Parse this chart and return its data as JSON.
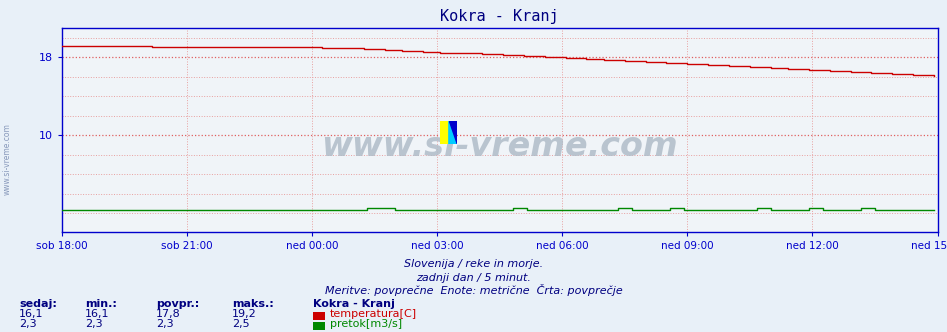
{
  "title": "Kokra - Kranj",
  "title_color": "#000080",
  "bg_color": "#e8f0f8",
  "plot_bg_color": "#f0f4f8",
  "tick_labels": [
    "sob 18:00",
    "sob 21:00",
    "ned 00:00",
    "ned 03:00",
    "ned 06:00",
    "ned 09:00",
    "ned 12:00",
    "ned 15:00"
  ],
  "ytick_vals": [
    10,
    18
  ],
  "ytick_labels": [
    "10",
    "18"
  ],
  "ymin": 0,
  "ymax": 21.0,
  "xmin": 0,
  "xmax": 252,
  "hgrid_vals": [
    2,
    4,
    6,
    8,
    10,
    12,
    14,
    16,
    18,
    20
  ],
  "hgrid_major": [
    10,
    18
  ],
  "grid_color": "#e8a0a0",
  "grid_major_color": "#e06060",
  "temp_color": "#cc0000",
  "flow_color": "#008800",
  "axis_color": "#0000cc",
  "watermark": "www.si-vreme.com",
  "subtitle1": "Slovenija / reke in morje.",
  "subtitle2": "zadnji dan / 5 minut.",
  "subtitle3": "Meritve: povprečne  Enote: metrične  Črta: povprečje",
  "subtitle_color": "#000080",
  "legend_title": "Kokra - Kranj",
  "stats_headers": [
    "sedaj:",
    "min.:",
    "povpr.:",
    "maks.:"
  ],
  "stats_color": "#000080",
  "temp_stats": [
    "16,1",
    "16,1",
    "17,8",
    "19,2"
  ],
  "flow_stats": [
    "2,3",
    "2,3",
    "2,3",
    "2,5"
  ],
  "temp_label": "temperatura[C]",
  "flow_label": "pretok[m3/s]",
  "n_points": 252
}
